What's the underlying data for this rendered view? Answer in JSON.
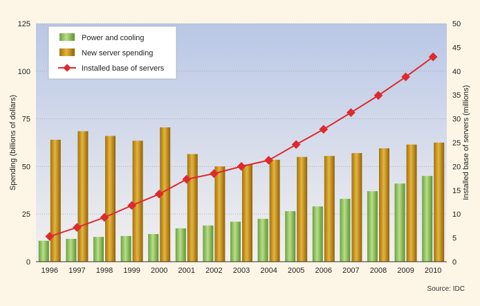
{
  "colors": {
    "page_bg": "#fdf6e6",
    "plot_top": "#b9c7e6",
    "plot_bottom": "#f3f1ef",
    "grid": "#8f97a8",
    "power": "#8fc05a",
    "server": "#c8941b",
    "installed": "#dd2a2e"
  },
  "legend": {
    "power": "Power and cooling",
    "server": "New server spending",
    "installed": "Installed base of servers"
  },
  "source": "Source: IDC",
  "chart_data": {
    "type": "bar",
    "categories": [
      "1996",
      "1997",
      "1998",
      "1999",
      "2000",
      "2001",
      "2002",
      "2003",
      "2004",
      "2005",
      "2006",
      "2007",
      "2008",
      "2009",
      "2010"
    ],
    "series": [
      {
        "name": "Power and cooling",
        "axis": "left",
        "type": "bar",
        "values": [
          11,
          12,
          13,
          13.5,
          14.5,
          17.5,
          19,
          21,
          22.5,
          26.5,
          29,
          33,
          37,
          41,
          45
        ]
      },
      {
        "name": "New server spending",
        "axis": "left",
        "type": "bar",
        "values": [
          64,
          68.5,
          66,
          63.5,
          70.5,
          56.5,
          50,
          51,
          53.5,
          55,
          55.5,
          57,
          59.5,
          61.5,
          62.5
        ]
      },
      {
        "name": "Installed base of servers",
        "axis": "right",
        "type": "line",
        "values": [
          5.3,
          7.2,
          9.3,
          11.8,
          14.2,
          17.3,
          18.5,
          20,
          21.3,
          24.6,
          27.8,
          31.3,
          34.9,
          38.8,
          43
        ]
      }
    ],
    "ylabel": "Spending (billions of dollars)",
    "y2label": "Installed base of servers  (millions)",
    "ylim": [
      0,
      125
    ],
    "yticks": [
      "0",
      "25",
      "50",
      "75",
      "100",
      "125"
    ],
    "y2lim": [
      0,
      50
    ],
    "y2ticks": [
      "0",
      "5",
      "10",
      "15",
      "20",
      "25",
      "30",
      "35",
      "40",
      "45",
      "50"
    ],
    "grid": true,
    "legend_position": "top-left"
  }
}
